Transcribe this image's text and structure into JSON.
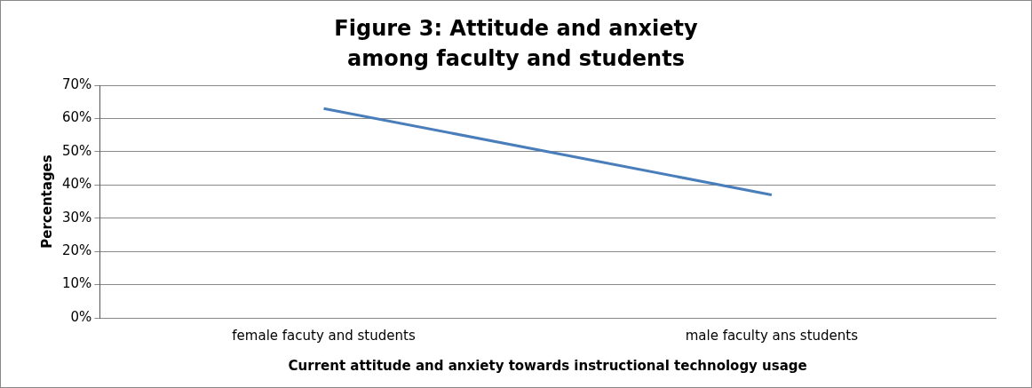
{
  "chart_data": {
    "type": "line",
    "title": "Figure 3: Attitude and anxiety among faculty and students",
    "xlabel": "Current attitude and anxiety towards instructional technology usage",
    "ylabel": "Percentages",
    "categories": [
      "female facuty and students",
      "male faculty ans students"
    ],
    "series": [
      {
        "color": "#4a7ebb",
        "values": [
          63,
          37
        ]
      }
    ],
    "ylim": [
      0,
      70
    ],
    "yticks": [
      {
        "value": 0,
        "label": "0%"
      },
      {
        "value": 10,
        "label": "10%"
      },
      {
        "value": 20,
        "label": "20%"
      },
      {
        "value": 30,
        "label": "30%"
      },
      {
        "value": 40,
        "label": "40%"
      },
      {
        "value": 50,
        "label": "50%"
      },
      {
        "value": 60,
        "label": "60%"
      },
      {
        "value": 70,
        "label": "70%"
      }
    ],
    "grid": "y",
    "legend": false,
    "marker": "none",
    "line_style": "solid"
  }
}
